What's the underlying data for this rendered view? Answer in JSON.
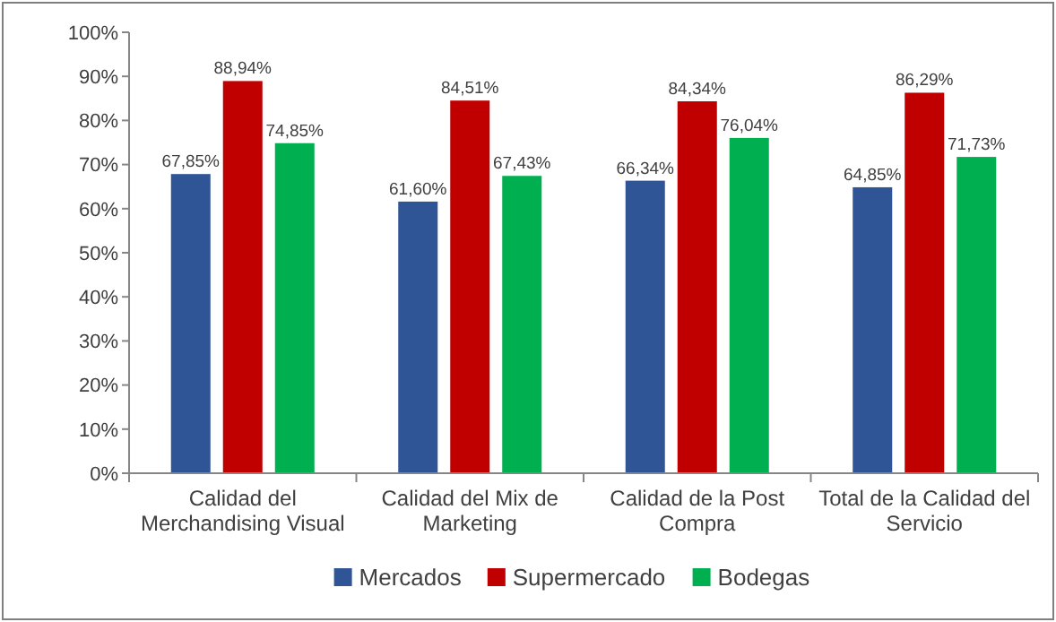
{
  "chart_data": {
    "type": "bar",
    "categories": [
      "Calidad del Merchandising Visual",
      "Calidad del Mix de Marketing",
      "Calidad de la Post Compra",
      "Total de la Calidad del Servicio"
    ],
    "series": [
      {
        "name": "Mercados",
        "color": "#2f5597",
        "values": [
          67.85,
          61.6,
          66.34,
          64.85
        ],
        "value_labels": [
          "67,85%",
          "61,60%",
          "66,34%",
          "64,85%"
        ]
      },
      {
        "name": "Supermercado",
        "color": "#c00000",
        "values": [
          88.94,
          84.51,
          84.34,
          86.29
        ],
        "value_labels": [
          "88,94%",
          "84,51%",
          "84,34%",
          "86,29%"
        ]
      },
      {
        "name": "Bodegas",
        "color": "#00b050",
        "values": [
          74.85,
          67.43,
          76.04,
          71.73
        ],
        "value_labels": [
          "74,85%",
          "67,43%",
          "76,04%",
          "71,73%"
        ]
      }
    ],
    "ylim": [
      0,
      100
    ],
    "yticks": [
      {
        "value": 0,
        "label": "0%"
      },
      {
        "value": 10,
        "label": "10%"
      },
      {
        "value": 20,
        "label": "20%"
      },
      {
        "value": 30,
        "label": "30%"
      },
      {
        "value": 40,
        "label": "40%"
      },
      {
        "value": 50,
        "label": "50%"
      },
      {
        "value": 60,
        "label": "60%"
      },
      {
        "value": 70,
        "label": "70%"
      },
      {
        "value": 80,
        "label": "80%"
      },
      {
        "value": 90,
        "label": "90%"
      },
      {
        "value": 100,
        "label": "100%"
      }
    ],
    "legend": "bottom"
  }
}
